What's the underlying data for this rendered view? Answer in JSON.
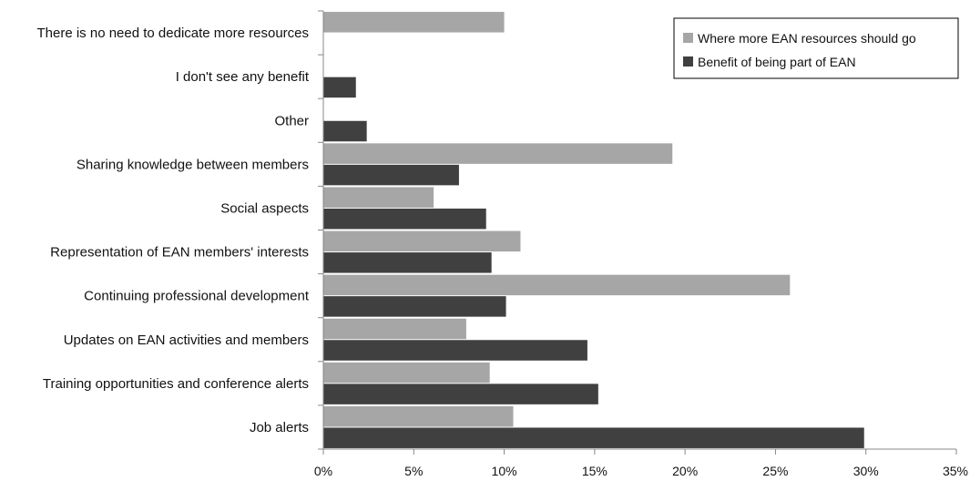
{
  "chart_data": {
    "type": "bar",
    "orientation": "horizontal",
    "categories": [
      "There is no need to dedicate more resources",
      "I don't see any benefit",
      "Other",
      "Sharing knowledge between members",
      "Social aspects",
      "Representation of EAN members' interests",
      "Continuing professional development",
      "Updates on EAN activities and members",
      "Training opportunities and conference alerts",
      "Job alerts"
    ],
    "series": [
      {
        "name": "Where more EAN resources should go",
        "color": "#a6a6a6",
        "values": [
          10.0,
          null,
          null,
          19.3,
          6.1,
          10.9,
          25.8,
          7.9,
          9.2,
          10.5
        ]
      },
      {
        "name": "Benefit of being part of EAN",
        "color": "#404040",
        "values": [
          null,
          1.8,
          2.4,
          7.5,
          9.0,
          9.3,
          10.1,
          14.6,
          15.2,
          29.9
        ]
      }
    ],
    "xlim": [
      0,
      35
    ],
    "xticks": [
      "0%",
      "5%",
      "10%",
      "15%",
      "20%",
      "25%",
      "30%",
      "35%"
    ],
    "grid": false,
    "legend_position": "top-right",
    "title": "",
    "xlabel": "",
    "ylabel": ""
  }
}
